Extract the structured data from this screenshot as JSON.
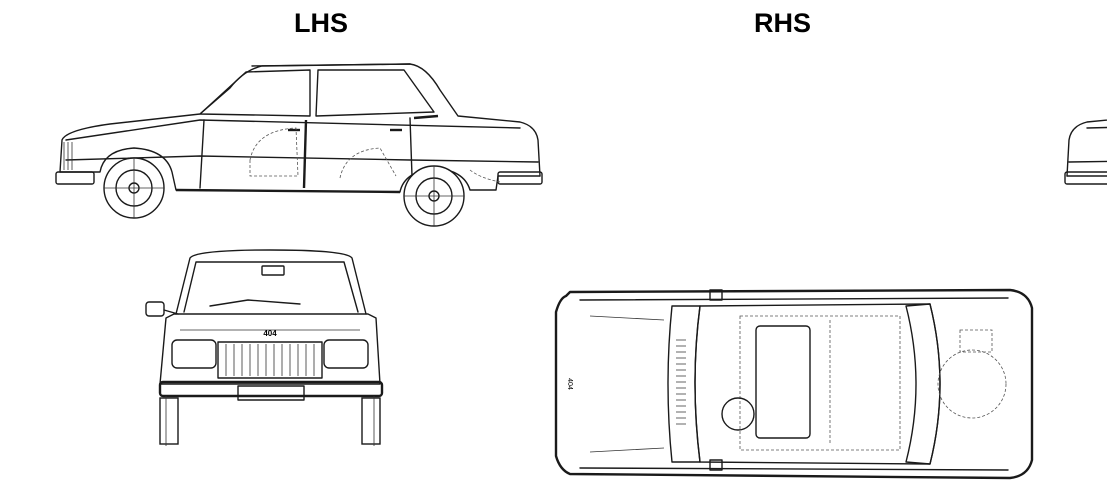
{
  "labels": {
    "left_side": "LHS",
    "right_side": "RHS"
  },
  "badges": {
    "front_badge": "404",
    "rear_badge": "404"
  },
  "colors": {
    "line": "#1a1a1a",
    "background": "#ffffff"
  }
}
